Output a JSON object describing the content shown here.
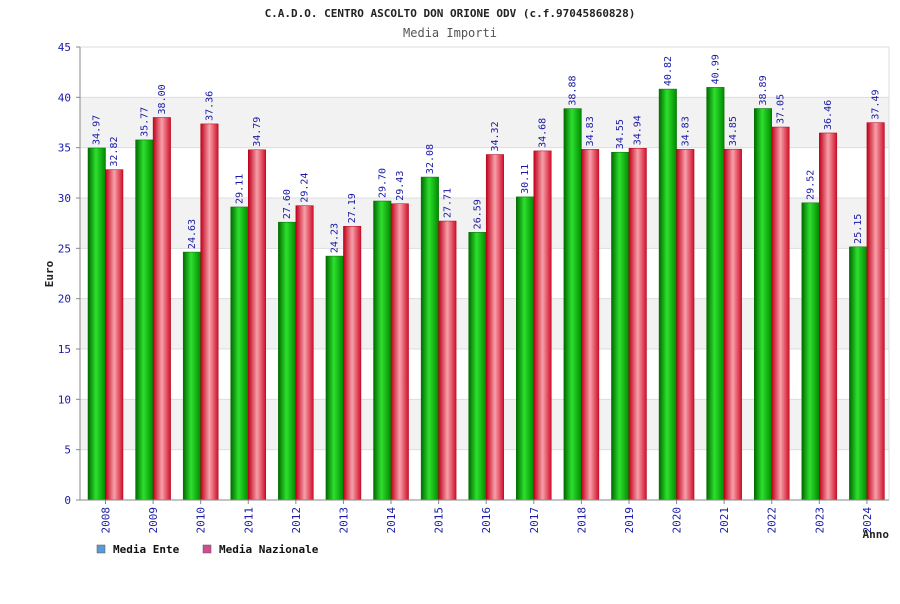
{
  "chart_data": {
    "type": "bar",
    "title": "C.A.D.O. CENTRO ASCOLTO DON ORIONE ODV (c.f.97045860828)",
    "subtitle": "Media Importi",
    "xlabel": "Anno",
    "ylabel": "Euro",
    "ylim": [
      0,
      45
    ],
    "yticks": [
      0,
      5,
      10,
      15,
      20,
      25,
      30,
      35,
      40,
      45
    ],
    "grid": true,
    "legend_position": "bottom-left",
    "categories": [
      "2008",
      "2009",
      "2010",
      "2011",
      "2012",
      "2013",
      "2014",
      "2015",
      "2016",
      "2017",
      "2018",
      "2019",
      "2020",
      "2021",
      "2022",
      "2023",
      "2024"
    ],
    "series": [
      {
        "name": "Media Ente",
        "color": "#00b400",
        "legend_color": "#5b9bd5",
        "values": [
          34.97,
          35.77,
          24.63,
          29.11,
          27.6,
          24.23,
          29.7,
          32.08,
          26.59,
          30.11,
          38.88,
          34.55,
          40.82,
          40.99,
          38.89,
          29.52,
          25.15
        ],
        "labels": [
          "34.97",
          "35.77",
          "24.63",
          "29.11",
          "27.60",
          "24.23",
          "29.70",
          "32.08",
          "26.59",
          "30.11",
          "38.88",
          "34.55",
          "40.82",
          "40.99",
          "38.89",
          "29.52",
          "25.15"
        ]
      },
      {
        "name": "Media Nazionale",
        "color": "#e8283c",
        "legend_color": "#d24c8f",
        "values": [
          32.82,
          38.0,
          37.36,
          34.79,
          29.24,
          27.19,
          29.43,
          27.71,
          34.32,
          34.68,
          34.83,
          34.94,
          34.83,
          34.85,
          37.05,
          36.46,
          37.49
        ],
        "labels": [
          "32.82",
          "38.00",
          "37.36",
          "34.79",
          "29.24",
          "27.19",
          "29.43",
          "27.71",
          "34.32",
          "34.68",
          "34.83",
          "34.94",
          "34.83",
          "34.85",
          "37.05",
          "36.46",
          "37.49"
        ]
      }
    ]
  }
}
